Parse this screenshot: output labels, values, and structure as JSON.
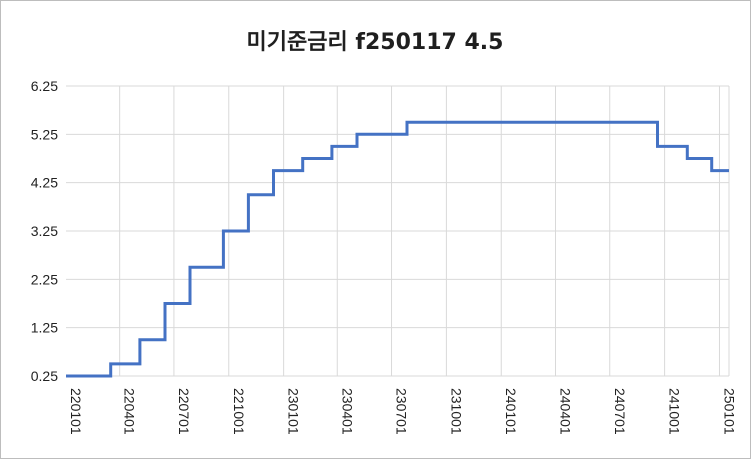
{
  "chart_data": {
    "type": "line",
    "title": "미기준금리 f250117  4.5",
    "xlabel": "",
    "ylabel": "",
    "ylim": [
      0.25,
      6.25
    ],
    "y_ticks": [
      0.25,
      1.25,
      2.25,
      3.25,
      4.25,
      5.25,
      6.25
    ],
    "y_tick_labels": [
      "0.25",
      "1.25",
      "2.25",
      "3.25",
      "4.25",
      "5.25",
      "6.25"
    ],
    "x_tick_labels": [
      "220101",
      "220401",
      "220701",
      "221001",
      "230101",
      "230401",
      "230701",
      "231001",
      "240101",
      "240401",
      "240701",
      "241001",
      "250101"
    ],
    "x_range": [
      "2022-01-01",
      "2025-01-17"
    ],
    "grid": true,
    "legend": "none",
    "line_style": "step",
    "color": "#4472c4",
    "series": [
      {
        "values": [
          {
            "date": "2022-01-01",
            "value": 0.25
          },
          {
            "date": "2022-03-17",
            "value": 0.5
          },
          {
            "date": "2022-05-05",
            "value": 1.0
          },
          {
            "date": "2022-06-16",
            "value": 1.75
          },
          {
            "date": "2022-07-28",
            "value": 2.5
          },
          {
            "date": "2022-09-22",
            "value": 3.25
          },
          {
            "date": "2022-11-03",
            "value": 4.0
          },
          {
            "date": "2022-12-15",
            "value": 4.5
          },
          {
            "date": "2023-02-02",
            "value": 4.75
          },
          {
            "date": "2023-03-23",
            "value": 5.0
          },
          {
            "date": "2023-05-04",
            "value": 5.25
          },
          {
            "date": "2023-07-27",
            "value": 5.5
          },
          {
            "date": "2024-09-19",
            "value": 5.0
          },
          {
            "date": "2024-11-08",
            "value": 4.75
          },
          {
            "date": "2024-12-19",
            "value": 4.5
          },
          {
            "date": "2025-01-17",
            "value": 4.5
          }
        ]
      }
    ]
  }
}
